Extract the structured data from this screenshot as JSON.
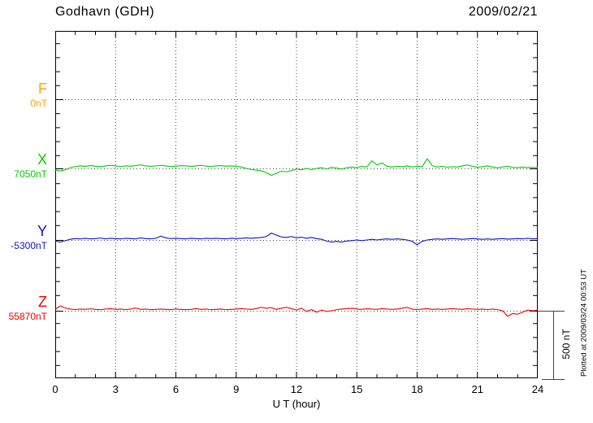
{
  "chart_data": {
    "type": "line",
    "title": "Godhavn (GDH)",
    "date_label": "2009/02/21",
    "xlabel": "U T (hour)",
    "x_ticks": [
      "0",
      "3",
      "6",
      "9",
      "12",
      "15",
      "18",
      "21",
      "24"
    ],
    "x_range": [
      0,
      24
    ],
    "x_step_hours": 0.25,
    "grid": "dotted reference lines at each component baseline and every 3 hours",
    "scale_bar": {
      "label": "500 nT",
      "nT": 500
    },
    "footnote": "Plotted at 2009/03/24 00:53 UT",
    "series": [
      {
        "name": "F",
        "baseline_label": "0nT",
        "baseline_nT": 0,
        "color": "#FFA500",
        "note": "no trace plotted (baseline only)",
        "values_nT_offset": []
      },
      {
        "name": "X",
        "baseline_label": "7050nT",
        "baseline_nT": 7050,
        "color": "#00CC00",
        "values_nT_offset": [
          -12,
          -18,
          -10,
          5,
          14,
          18,
          15,
          20,
          16,
          12,
          18,
          22,
          18,
          14,
          18,
          16,
          20,
          25,
          18,
          15,
          18,
          22,
          18,
          14,
          16,
          20,
          18,
          15,
          18,
          22,
          17,
          14,
          18,
          20,
          16,
          18,
          15,
          10,
          0,
          -8,
          -12,
          -18,
          -30,
          -50,
          -35,
          -20,
          -25,
          -15,
          -5,
          -10,
          0,
          -8,
          0,
          5,
          -5,
          8,
          2,
          -5,
          5,
          10,
          5,
          15,
          10,
          55,
          25,
          40,
          15,
          10,
          15,
          12,
          18,
          10,
          15,
          12,
          70,
          20,
          10,
          15,
          8,
          12,
          10,
          18,
          25,
          15,
          8,
          12,
          18,
          10,
          5,
          10,
          15,
          8,
          5,
          10,
          6,
          8,
          5
        ]
      },
      {
        "name": "Y",
        "baseline_label": "-5300nT",
        "baseline_nT": -5300,
        "color": "#1111CC",
        "values_nT_offset": [
          -8,
          -15,
          -5,
          5,
          10,
          8,
          12,
          8,
          10,
          14,
          8,
          12,
          10,
          8,
          12,
          10,
          8,
          15,
          10,
          8,
          12,
          28,
          15,
          10,
          12,
          10,
          8,
          12,
          10,
          8,
          12,
          10,
          12,
          10,
          8,
          12,
          10,
          12,
          15,
          12,
          15,
          18,
          25,
          50,
          35,
          22,
          18,
          25,
          15,
          20,
          12,
          18,
          10,
          5,
          -8,
          -15,
          -10,
          -15,
          -8,
          -5,
          0,
          -5,
          0,
          5,
          0,
          5,
          8,
          5,
          8,
          5,
          0,
          -10,
          -35,
          -10,
          0,
          5,
          8,
          5,
          8,
          10,
          8,
          5,
          8,
          10,
          8,
          5,
          8,
          5,
          8,
          10,
          6,
          8,
          10,
          8,
          12,
          8,
          10
        ]
      },
      {
        "name": "Z",
        "baseline_label": "55870nT",
        "baseline_nT": 55870,
        "color": "#EE0000",
        "values_nT_offset": [
          10,
          35,
          20,
          12,
          8,
          12,
          10,
          14,
          10,
          8,
          12,
          15,
          10,
          12,
          8,
          12,
          20,
          10,
          12,
          8,
          10,
          12,
          10,
          8,
          12,
          10,
          8,
          10,
          15,
          10,
          12,
          8,
          10,
          12,
          8,
          10,
          12,
          15,
          12,
          10,
          15,
          25,
          18,
          22,
          10,
          18,
          25,
          15,
          5,
          18,
          -5,
          8,
          -10,
          5,
          -5,
          0,
          8,
          12,
          15,
          18,
          12,
          10,
          15,
          12,
          10,
          15,
          12,
          10,
          12,
          18,
          25,
          12,
          8,
          12,
          15,
          10,
          12,
          10,
          12,
          15,
          12,
          10,
          15,
          12,
          10,
          12,
          8,
          12,
          8,
          0,
          -40,
          -20,
          -25,
          -10,
          5,
          0,
          5
        ]
      }
    ]
  }
}
